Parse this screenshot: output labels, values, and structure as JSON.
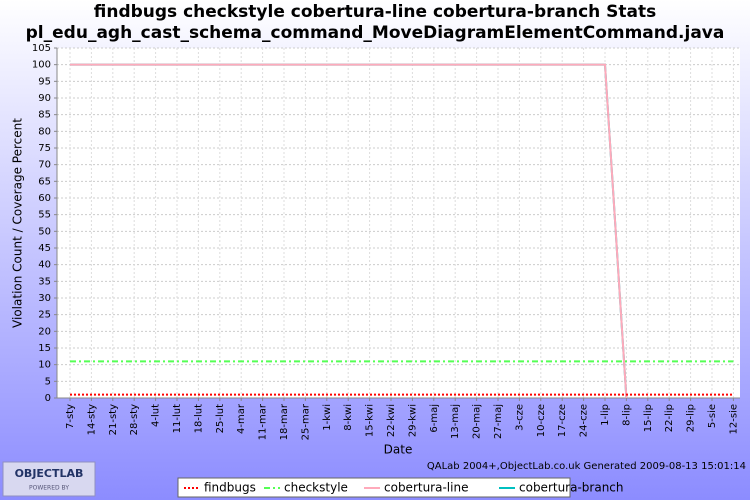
{
  "chart_data": {
    "type": "line",
    "title": "findbugs checkstyle cobertura-line cobertura-branch  Stats",
    "subtitle": "pl_edu_agh_cast_schema_command_MoveDiagramElementCommand.java",
    "y_label": "Violation Count / Coverage Percent",
    "x_label": "Date",
    "footer": "QALab 2004+,ObjectLab.co.uk Generated 2009-08-13 15:01:14",
    "logo": "OBJECTLAB",
    "logo_sub": "POWERED BY",
    "categories": [
      "7-sty",
      "14-sty",
      "21-sty",
      "28-sty",
      "4-lut",
      "11-lut",
      "18-lut",
      "25-lut",
      "4-mar",
      "11-mar",
      "18-mar",
      "25-mar",
      "1-kwi",
      "8-kwi",
      "15-kwi",
      "22-kwi",
      "29-kwi",
      "6-maj",
      "13-maj",
      "20-maj",
      "27-maj",
      "3-cze",
      "10-cze",
      "17-cze",
      "24-cze",
      "1-lip",
      "8-lip",
      "15-lip",
      "22-lip",
      "29-lip",
      "5-sie",
      "12-sie"
    ],
    "series": [
      {
        "name": "findbugs",
        "color": "#ff0000",
        "dash": "2,2",
        "values": [
          1,
          1,
          1,
          1,
          1,
          1,
          1,
          1,
          1,
          1,
          1,
          1,
          1,
          1,
          1,
          1,
          1,
          1,
          1,
          1,
          1,
          1,
          1,
          1,
          1,
          1,
          1,
          1,
          1,
          1,
          1,
          1
        ]
      },
      {
        "name": "checkstyle",
        "color": "#55ff55",
        "dash": "6,3,2,3",
        "values": [
          11,
          11,
          11,
          11,
          11,
          11,
          11,
          11,
          11,
          11,
          11,
          11,
          11,
          11,
          11,
          11,
          11,
          11,
          11,
          11,
          11,
          11,
          11,
          11,
          11,
          11,
          11,
          11,
          11,
          11,
          11,
          11
        ]
      },
      {
        "name": "cobertura-line",
        "color": "#ffaabb",
        "dash": "",
        "values": [
          100,
          100,
          100,
          100,
          100,
          100,
          100,
          100,
          100,
          100,
          100,
          100,
          100,
          100,
          100,
          100,
          100,
          100,
          100,
          100,
          100,
          100,
          100,
          100,
          100,
          100,
          0,
          null,
          null,
          null,
          null,
          null
        ]
      },
      {
        "name": "cobertura-branch",
        "color": "#00c0c0",
        "dash": "",
        "values": [
          100,
          100,
          100,
          100,
          100,
          100,
          100,
          100,
          100,
          100,
          100,
          100,
          100,
          100,
          100,
          100,
          100,
          100,
          100,
          100,
          100,
          100,
          100,
          100,
          100,
          100,
          0,
          null,
          null,
          null,
          null,
          null
        ]
      }
    ],
    "ylim": [
      0,
      105
    ],
    "yticks": [
      0,
      5,
      10,
      15,
      20,
      25,
      30,
      35,
      40,
      45,
      50,
      55,
      60,
      65,
      70,
      75,
      80,
      85,
      90,
      95,
      100,
      105
    ],
    "grid": true
  }
}
